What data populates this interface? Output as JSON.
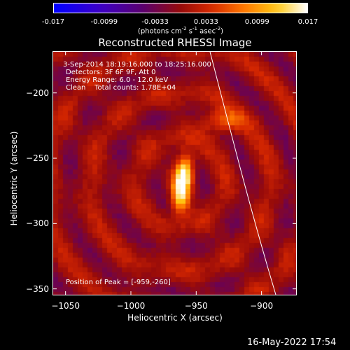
{
  "colorbar": {
    "ticks": [
      "-0.017",
      "-0.0099",
      "-0.0033",
      "0.0033",
      "0.0099",
      "0.017"
    ],
    "units_main": "(photons cm",
    "units_sup1": "-2",
    "units_mid1": " s",
    "units_sup2": "-1",
    "units_mid2": " asec",
    "units_sup3": "-2",
    "units_end": ")",
    "range": [
      -0.017,
      0.017
    ]
  },
  "chart_data": {
    "type": "heatmap",
    "title": "Reconstructed RHESSI Image",
    "xlabel": "Heliocentric X (arcsec)",
    "ylabel": "Heliocentric Y (arcsec)",
    "xlim": [
      -1060,
      -873
    ],
    "ylim": [
      -355,
      -168
    ],
    "x_ticks": [
      -1050,
      -1000,
      -950,
      -900
    ],
    "y_ticks": [
      -200,
      -250,
      -300,
      -350
    ],
    "sources": [
      {
        "x": -959,
        "y": -260,
        "peak": 0.017
      },
      {
        "x": -962,
        "y": -280,
        "peak": 0.015
      },
      {
        "x": -930,
        "y": -222,
        "peak": 0.008
      }
    ],
    "annotations": {
      "time": "3-Sep-2014 18:19:16.000 to 18:25:16.000",
      "detectors": "Detectors: 3F 6F 9F, Att 0",
      "energy": "Energy Range: 6.0 - 12.0 keV",
      "clean_counts": "Clean    Total counts: 1.78E+04",
      "peak": "Position of Peak = [-959,-260]"
    }
  },
  "footer": {
    "date": "16-May-2022 17:54"
  }
}
